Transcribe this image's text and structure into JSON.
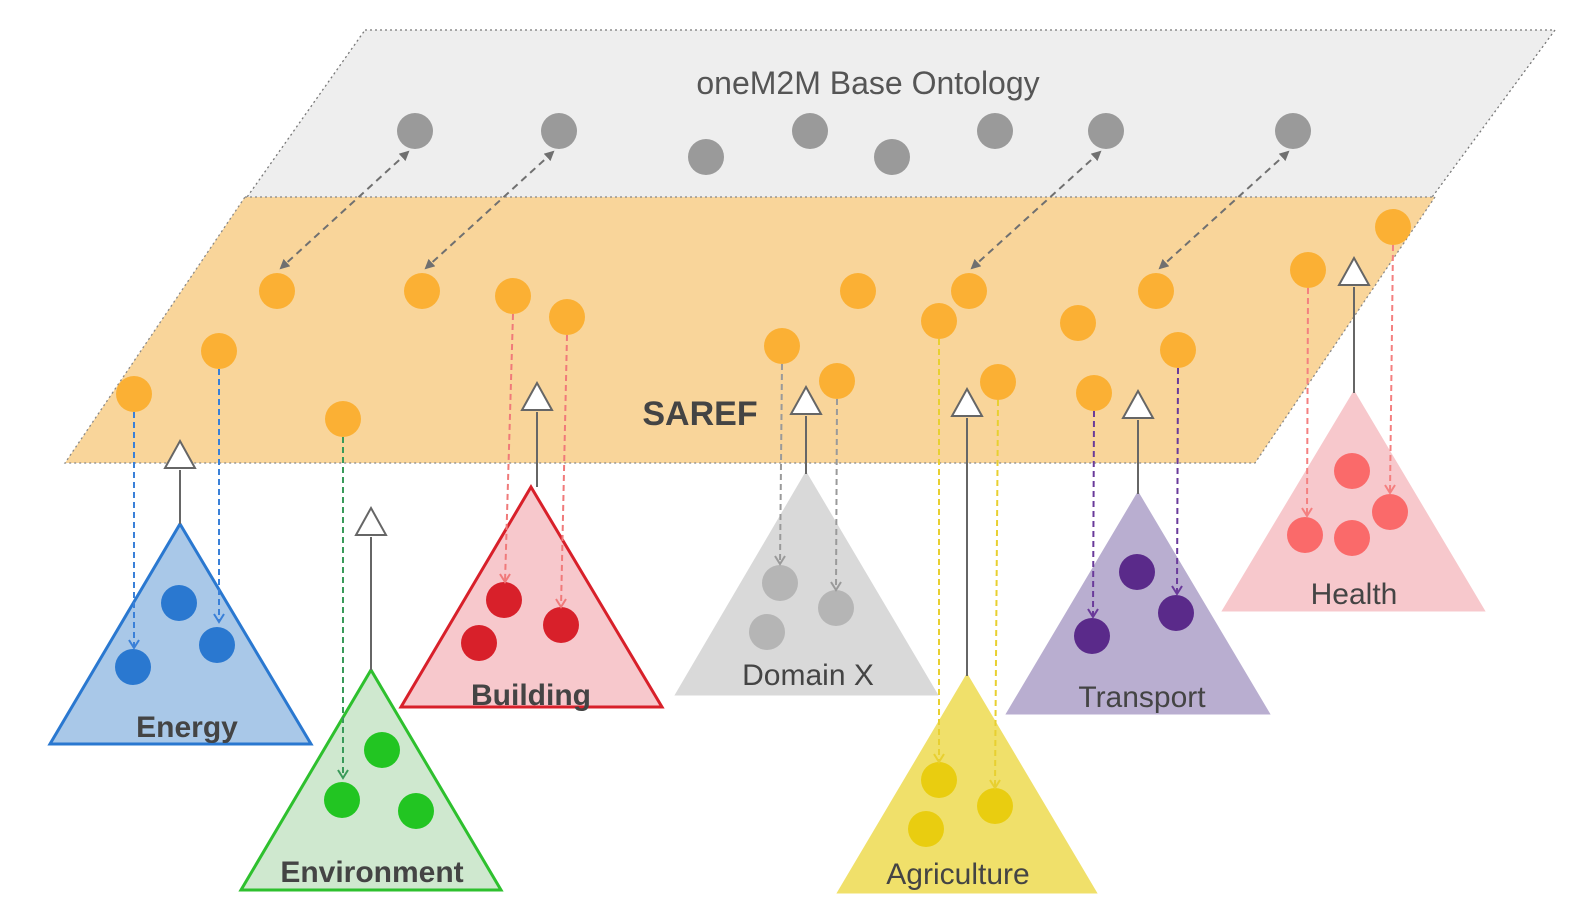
{
  "base_ontology": {
    "label": "oneM2M Base Ontology",
    "fill": "#eeeeee",
    "node_color": "#9a9a9a"
  },
  "saref": {
    "label": "SAREF",
    "fill": "#f9d59a",
    "node_color": "#fbb034"
  },
  "domains": [
    {
      "key": "energy",
      "label": "Energy",
      "bold": true,
      "fill": "#a9c8e8",
      "stroke": "#2a78d0",
      "node": "#2a78d0",
      "dash": "#3a80d8"
    },
    {
      "key": "environment",
      "label": "Environment",
      "bold": true,
      "fill": "#cfe8cf",
      "stroke": "#2ec02e",
      "node": "#22c522",
      "dash": "#3a9a5a"
    },
    {
      "key": "building",
      "label": "Building",
      "bold": true,
      "fill": "#f7c8cc",
      "stroke": "#d8202a",
      "node": "#d8202a",
      "dash": "#f07a7a"
    },
    {
      "key": "domainx",
      "label": "Domain X",
      "bold": false,
      "fill": "#d9d9d9",
      "stroke": "#d9d9d9",
      "node": "#b5b5b5",
      "dash": "#9a9a9a"
    },
    {
      "key": "agriculture",
      "label": "Agriculture",
      "bold": false,
      "fill": "#f0e06a",
      "stroke": "#f0e06a",
      "node": "#e9cd10",
      "dash": "#e8d030"
    },
    {
      "key": "transport",
      "label": "Transport",
      "bold": false,
      "fill": "#b9aed0",
      "stroke": "#b9aed0",
      "node": "#5a2a8a",
      "dash": "#6a3a9a"
    },
    {
      "key": "health",
      "label": "Health",
      "bold": false,
      "fill": "#f7c8cc",
      "stroke": "#f7c8cc",
      "node": "#fa6a6a",
      "dash": "#f48080"
    }
  ],
  "link_color": "#707070"
}
